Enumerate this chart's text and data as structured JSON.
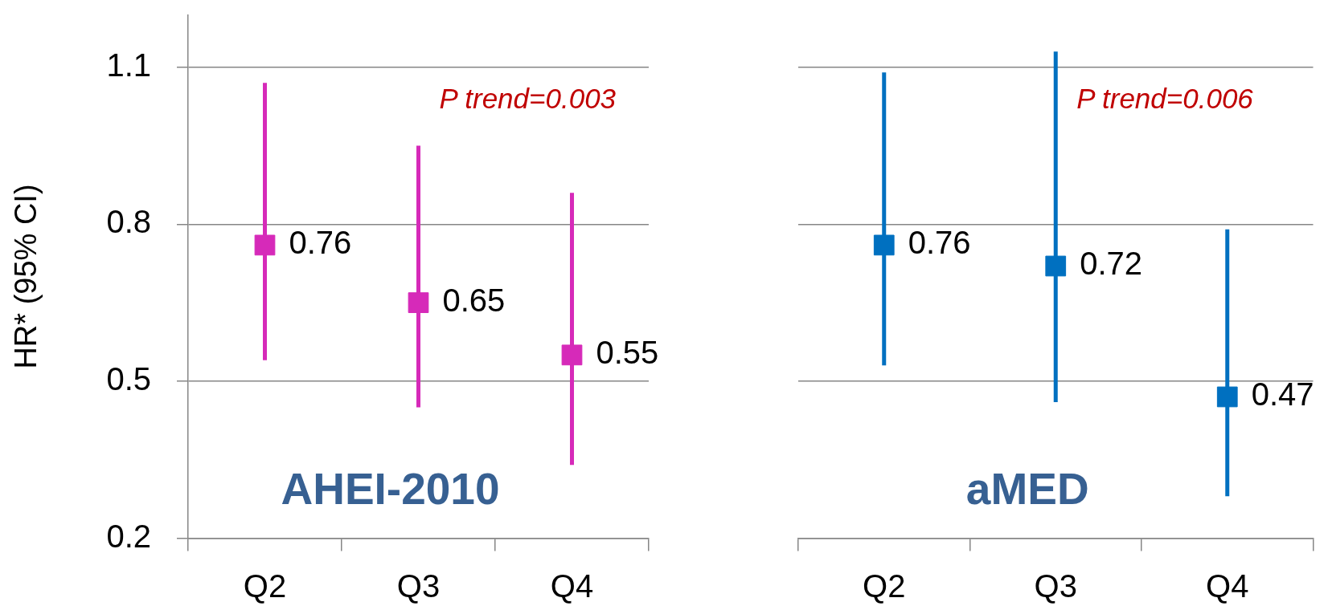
{
  "chart_data": [
    {
      "type": "scatter",
      "title": "AHEI-2010",
      "ylabel": "HR* (95% CI)",
      "annotations": [
        "P trend=0.003"
      ],
      "categories": [
        "Q2",
        "Q3",
        "Q4"
      ],
      "values": [
        0.76,
        0.65,
        0.55
      ],
      "errors": [
        [
          0.54,
          1.07
        ],
        [
          0.45,
          0.95
        ],
        [
          0.34,
          0.86
        ]
      ],
      "color": "#d62ab9",
      "ylim": [
        0.2,
        1.2
      ],
      "yticks": [
        0.2,
        0.5,
        0.8,
        1.1
      ],
      "grid": "y",
      "marker": "square",
      "data_labels": true
    },
    {
      "type": "scatter",
      "title": "aMED",
      "annotations": [
        "P trend=0.006"
      ],
      "categories": [
        "Q2",
        "Q3",
        "Q4"
      ],
      "values": [
        0.76,
        0.72,
        0.47
      ],
      "errors": [
        [
          0.53,
          1.09
        ],
        [
          0.46,
          1.13
        ],
        [
          0.28,
          0.79
        ]
      ],
      "color": "#0070c0",
      "yticks": [
        0.2,
        0.5,
        0.8,
        1.1
      ],
      "grid": "y",
      "marker": "square",
      "data_labels": true,
      "tick_labels": "x"
    }
  ]
}
